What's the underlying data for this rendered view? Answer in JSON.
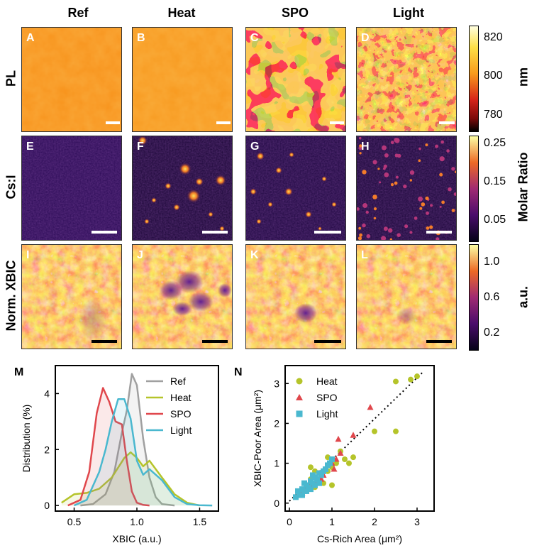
{
  "columns": [
    "Ref",
    "Heat",
    "SPO",
    "Light"
  ],
  "rows": [
    "PL",
    "Cs:I",
    "Norm. XBIC"
  ],
  "panel_letters": [
    "A",
    "B",
    "C",
    "D",
    "E",
    "F",
    "G",
    "H",
    "I",
    "J",
    "K",
    "L"
  ],
  "colorbars": [
    {
      "ticks": [
        "820",
        "800",
        "780"
      ],
      "title": "nm"
    },
    {
      "ticks": [
        "0.25",
        "0.15",
        "0.05"
      ],
      "title": "Molar Ratio"
    },
    {
      "ticks": [
        "1.0",
        "0.6",
        "0.2"
      ],
      "title": "a.u."
    }
  ],
  "colors": {
    "inferno_low": "#2a0845",
    "inferno_mid": "#b5367a",
    "inferno_high": "#fca50a",
    "pl_orange": "#f89a1c",
    "pl_dark": "#8b0e0e",
    "ref": "#a0a0a0",
    "heat": "#b5c42a",
    "spo": "#e0474c",
    "light": "#4ab8cf"
  },
  "chart_data": [
    {
      "figure": "M",
      "type": "line",
      "xlabel": "XBIC (a.u.)",
      "ylabel": "Distribution (%)",
      "xlim": [
        0.35,
        1.65
      ],
      "ylim": [
        -0.2,
        5.0
      ],
      "xticks": [
        "0.5",
        "1.0",
        "1.5"
      ],
      "yticks": [
        "0",
        "2",
        "4"
      ],
      "legend_position": "top-right",
      "series": [
        {
          "name": "Ref",
          "x": [
            0.55,
            0.65,
            0.75,
            0.82,
            0.88,
            0.92,
            0.96,
            1.0,
            1.05,
            1.1,
            1.15,
            1.2,
            1.3
          ],
          "y": [
            0.0,
            0.05,
            0.4,
            1.2,
            2.6,
            3.4,
            4.7,
            4.3,
            2.4,
            1.0,
            0.3,
            0.05,
            0.0
          ]
        },
        {
          "name": "Heat",
          "x": [
            0.4,
            0.5,
            0.6,
            0.7,
            0.8,
            0.9,
            0.95,
            1.0,
            1.05,
            1.1,
            1.2,
            1.3,
            1.4,
            1.5
          ],
          "y": [
            0.1,
            0.4,
            0.45,
            0.6,
            1.0,
            1.7,
            1.9,
            1.7,
            1.4,
            1.6,
            1.0,
            0.4,
            0.1,
            0.0
          ]
        },
        {
          "name": "SPO",
          "x": [
            0.45,
            0.55,
            0.62,
            0.68,
            0.73,
            0.78,
            0.83,
            0.88,
            0.92,
            0.96,
            1.0,
            1.05,
            1.1
          ],
          "y": [
            0.0,
            0.2,
            1.2,
            3.3,
            4.2,
            3.7,
            3.0,
            2.9,
            1.6,
            0.5,
            0.1,
            0.02,
            0.0
          ]
        },
        {
          "name": "Light",
          "x": [
            0.5,
            0.6,
            0.7,
            0.75,
            0.8,
            0.85,
            0.9,
            0.95,
            1.0,
            1.05,
            1.1,
            1.2,
            1.3,
            1.4,
            1.5,
            1.6
          ],
          "y": [
            0.0,
            0.2,
            1.2,
            2.0,
            3.0,
            3.8,
            3.8,
            3.1,
            1.6,
            1.1,
            1.3,
            0.9,
            0.3,
            0.05,
            0.01,
            0.0
          ]
        }
      ]
    },
    {
      "figure": "N",
      "type": "scatter",
      "xlabel": "Cs-Rich Area (μm²)",
      "ylabel": "XBIC-Poor Area (μm²)",
      "xlim": [
        -0.1,
        3.4
      ],
      "ylim": [
        -0.2,
        3.45
      ],
      "xticks": [
        "0",
        "1",
        "2",
        "3"
      ],
      "yticks": [
        "0",
        "1",
        "2",
        "3"
      ],
      "legend_position": "top-left",
      "series": [
        {
          "name": "Heat",
          "marker": "circle",
          "points": [
            [
              0.3,
              0.3
            ],
            [
              0.5,
              0.6
            ],
            [
              0.5,
              0.9
            ],
            [
              0.6,
              0.8
            ],
            [
              0.7,
              0.6
            ],
            [
              0.8,
              0.5
            ],
            [
              0.9,
              0.8
            ],
            [
              0.9,
              1.15
            ],
            [
              1.0,
              0.9
            ],
            [
              1.1,
              1.0
            ],
            [
              1.2,
              1.3
            ],
            [
              1.3,
              1.1
            ],
            [
              1.4,
              1.0
            ],
            [
              1.5,
              1.15
            ],
            [
              2.0,
              1.8
            ],
            [
              2.5,
              1.8
            ],
            [
              2.5,
              3.05
            ],
            [
              2.85,
              3.1
            ],
            [
              3.0,
              3.18
            ],
            [
              0.4,
              0.4
            ],
            [
              0.6,
              0.4
            ],
            [
              1.0,
              0.45
            ]
          ]
        },
        {
          "name": "SPO",
          "marker": "triangle",
          "points": [
            [
              0.3,
              0.25
            ],
            [
              0.5,
              0.45
            ],
            [
              0.6,
              0.5
            ],
            [
              0.7,
              0.75
            ],
            [
              0.8,
              0.7
            ],
            [
              0.9,
              0.95
            ],
            [
              1.0,
              1.0
            ],
            [
              1.1,
              1.1
            ],
            [
              1.15,
              1.6
            ],
            [
              1.2,
              1.25
            ],
            [
              1.5,
              1.7
            ],
            [
              1.9,
              2.4
            ],
            [
              0.4,
              0.35
            ],
            [
              0.75,
              0.6
            ],
            [
              1.05,
              0.85
            ]
          ]
        },
        {
          "name": "Light",
          "marker": "square",
          "points": [
            [
              0.15,
              0.15
            ],
            [
              0.2,
              0.3
            ],
            [
              0.25,
              0.2
            ],
            [
              0.3,
              0.35
            ],
            [
              0.35,
              0.3
            ],
            [
              0.4,
              0.45
            ],
            [
              0.45,
              0.4
            ],
            [
              0.5,
              0.55
            ],
            [
              0.55,
              0.5
            ],
            [
              0.6,
              0.65
            ],
            [
              0.65,
              0.6
            ],
            [
              0.7,
              0.75
            ],
            [
              0.75,
              0.7
            ],
            [
              0.8,
              0.8
            ],
            [
              0.85,
              0.85
            ],
            [
              0.9,
              0.95
            ],
            [
              0.95,
              1.0
            ],
            [
              1.0,
              1.1
            ],
            [
              0.3,
              0.2
            ],
            [
              0.4,
              0.3
            ],
            [
              0.5,
              0.35
            ],
            [
              0.6,
              0.45
            ],
            [
              0.7,
              0.5
            ],
            [
              0.35,
              0.5
            ],
            [
              0.55,
              0.7
            ]
          ]
        }
      ],
      "fit_line": {
        "x": [
          0.0,
          3.15
        ],
        "y": [
          0.05,
          3.3
        ]
      }
    }
  ]
}
